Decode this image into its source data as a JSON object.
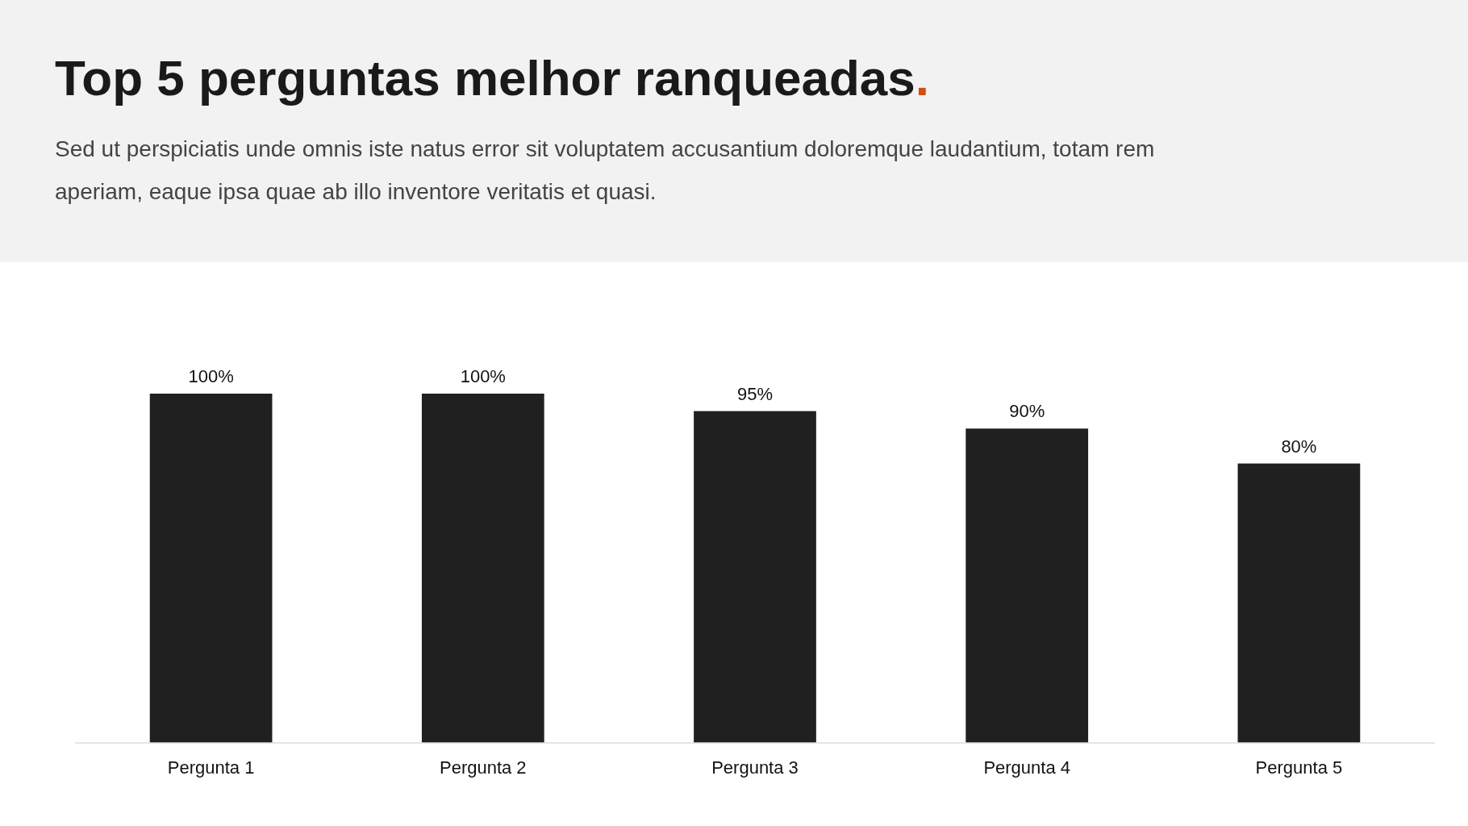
{
  "chart_data": {
    "type": "bar",
    "title": "Top 5 perguntas melhor ranqueadas.",
    "subtitle": "Sed ut perspiciatis unde omnis iste natus error sit voluptatem accusantium doloremque laudantium, totam rem aperiam, eaque ipsa quae ab illo inventore veritatis et quasi.",
    "categories": [
      "Pergunta 1",
      "Pergunta 2",
      "Pergunta 3",
      "Pergunta 4",
      "Pergunta 5"
    ],
    "values": [
      100,
      100,
      95,
      90,
      80
    ],
    "value_labels": [
      "100%",
      "100%",
      "95%",
      "90%",
      "80%"
    ],
    "color": "#202020"
  }
}
